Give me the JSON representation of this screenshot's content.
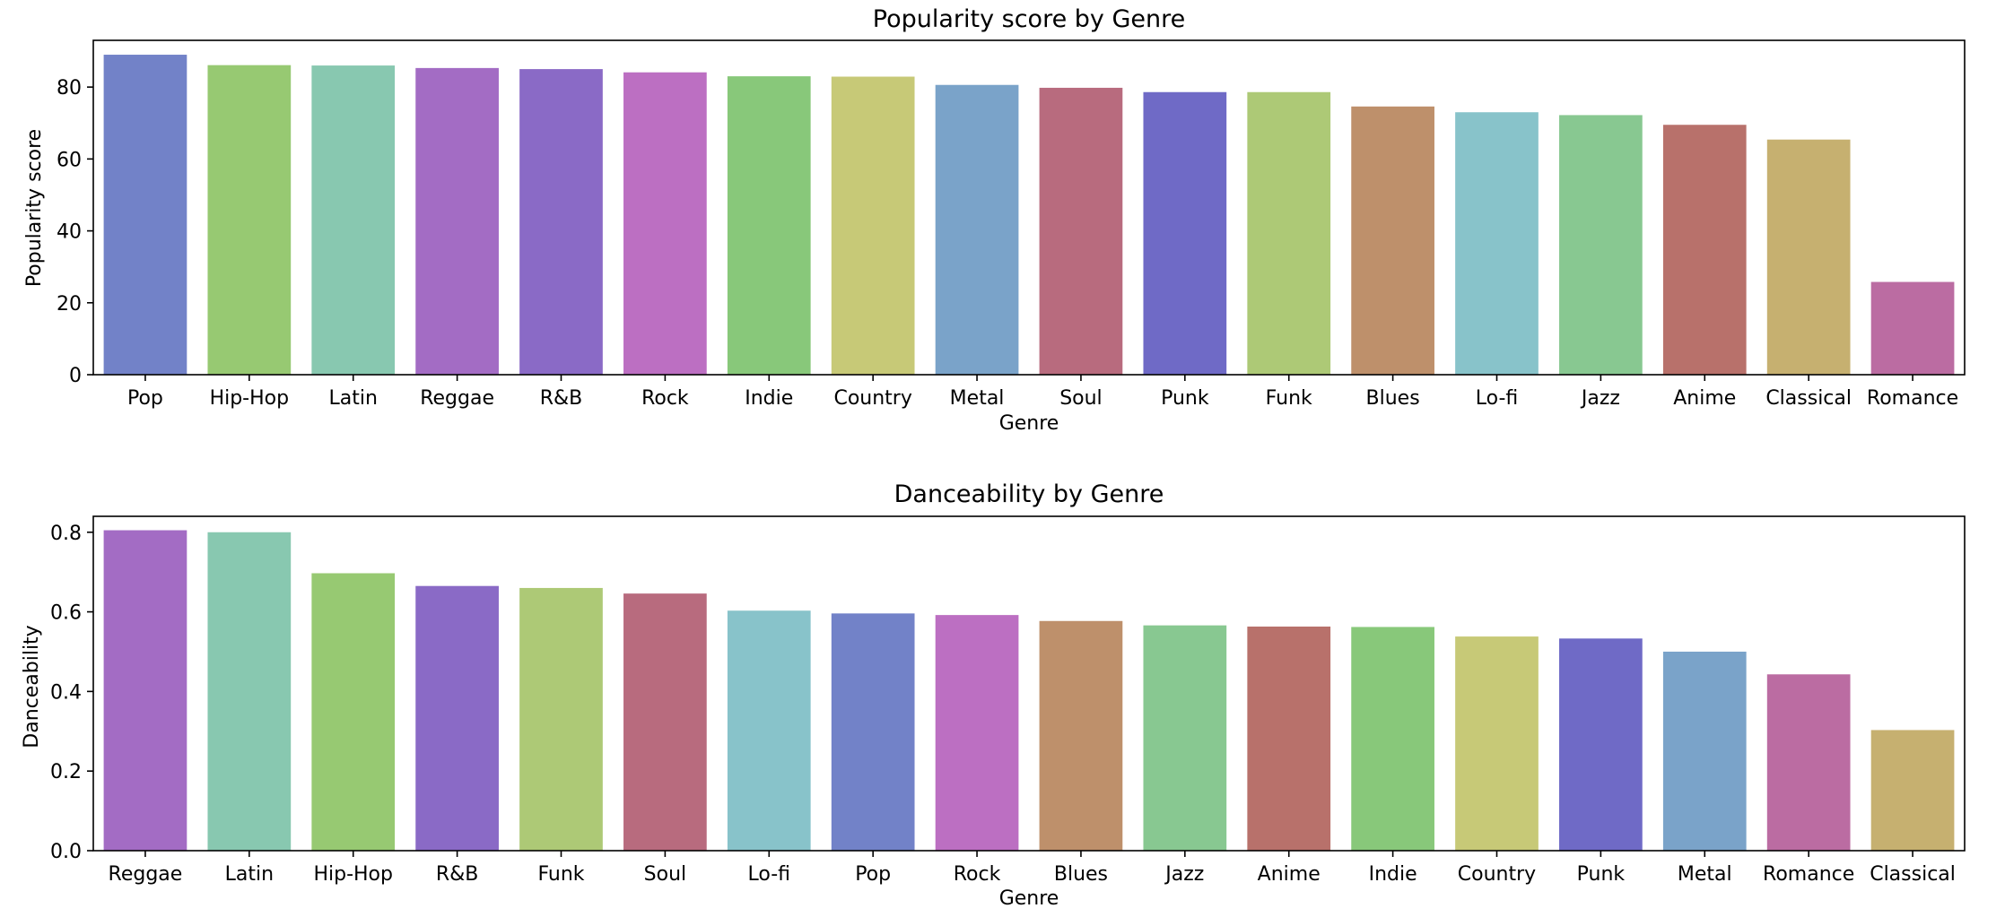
{
  "chart_data": [
    {
      "type": "bar",
      "title": "Popularity score by Genre",
      "xlabel": "Genre",
      "ylabel": "Popularity score",
      "ylim": [
        0,
        93
      ],
      "yticks": [
        0,
        20,
        40,
        60,
        80
      ],
      "ytick_labels": [
        "0",
        "20",
        "40",
        "60",
        "80"
      ],
      "grid": false,
      "categories": [
        "Pop",
        "Hip-Hop",
        "Latin",
        "Reggae",
        "R&B",
        "Rock",
        "Indie",
        "Country",
        "Metal",
        "Soul",
        "Punk",
        "Funk",
        "Blues",
        "Lo-fi",
        "Jazz",
        "Anime",
        "Classical",
        "Romance"
      ],
      "values": [
        89.0,
        86.1,
        86.0,
        85.3,
        85.0,
        84.1,
        83.0,
        82.9,
        80.6,
        79.8,
        78.6,
        78.6,
        74.6,
        73.0,
        72.2,
        69.5,
        65.4,
        25.8
      ]
    },
    {
      "type": "bar",
      "title": "Danceability by Genre",
      "xlabel": "Genre",
      "ylabel": "Danceability",
      "ylim": [
        0,
        0.84
      ],
      "yticks": [
        0.0,
        0.2,
        0.4,
        0.6,
        0.8
      ],
      "ytick_labels": [
        "0.0",
        "0.2",
        "0.4",
        "0.6",
        "0.8"
      ],
      "grid": false,
      "categories": [
        "Reggae",
        "Latin",
        "Hip-Hop",
        "R&B",
        "Funk",
        "Soul",
        "Lo-fi",
        "Pop",
        "Rock",
        "Blues",
        "Jazz",
        "Anime",
        "Indie",
        "Country",
        "Punk",
        "Metal",
        "Romance",
        "Classical"
      ],
      "values": [
        0.805,
        0.8,
        0.697,
        0.665,
        0.66,
        0.646,
        0.603,
        0.596,
        0.592,
        0.577,
        0.566,
        0.563,
        0.562,
        0.538,
        0.533,
        0.5,
        0.443,
        0.303
      ]
    }
  ],
  "genre_colors": {
    "Pop": "#7282c8",
    "Hip-Hop": "#97c972",
    "Latin": "#88c8b0",
    "Reggae": "#a36cc4",
    "R&B": "#8a6ac6",
    "Rock": "#bc6fc2",
    "Indie": "#88c87a",
    "Country": "#c7c977",
    "Metal": "#7aa3c9",
    "Soul": "#b86b7e",
    "Punk": "#6f6ac6",
    "Funk": "#adc976",
    "Blues": "#be906b",
    "Lo-fi": "#88c3ca",
    "Jazz": "#88c891",
    "Anime": "#b8716b",
    "Classical": "#c6b070",
    "Romance": "#bb6ca2"
  }
}
